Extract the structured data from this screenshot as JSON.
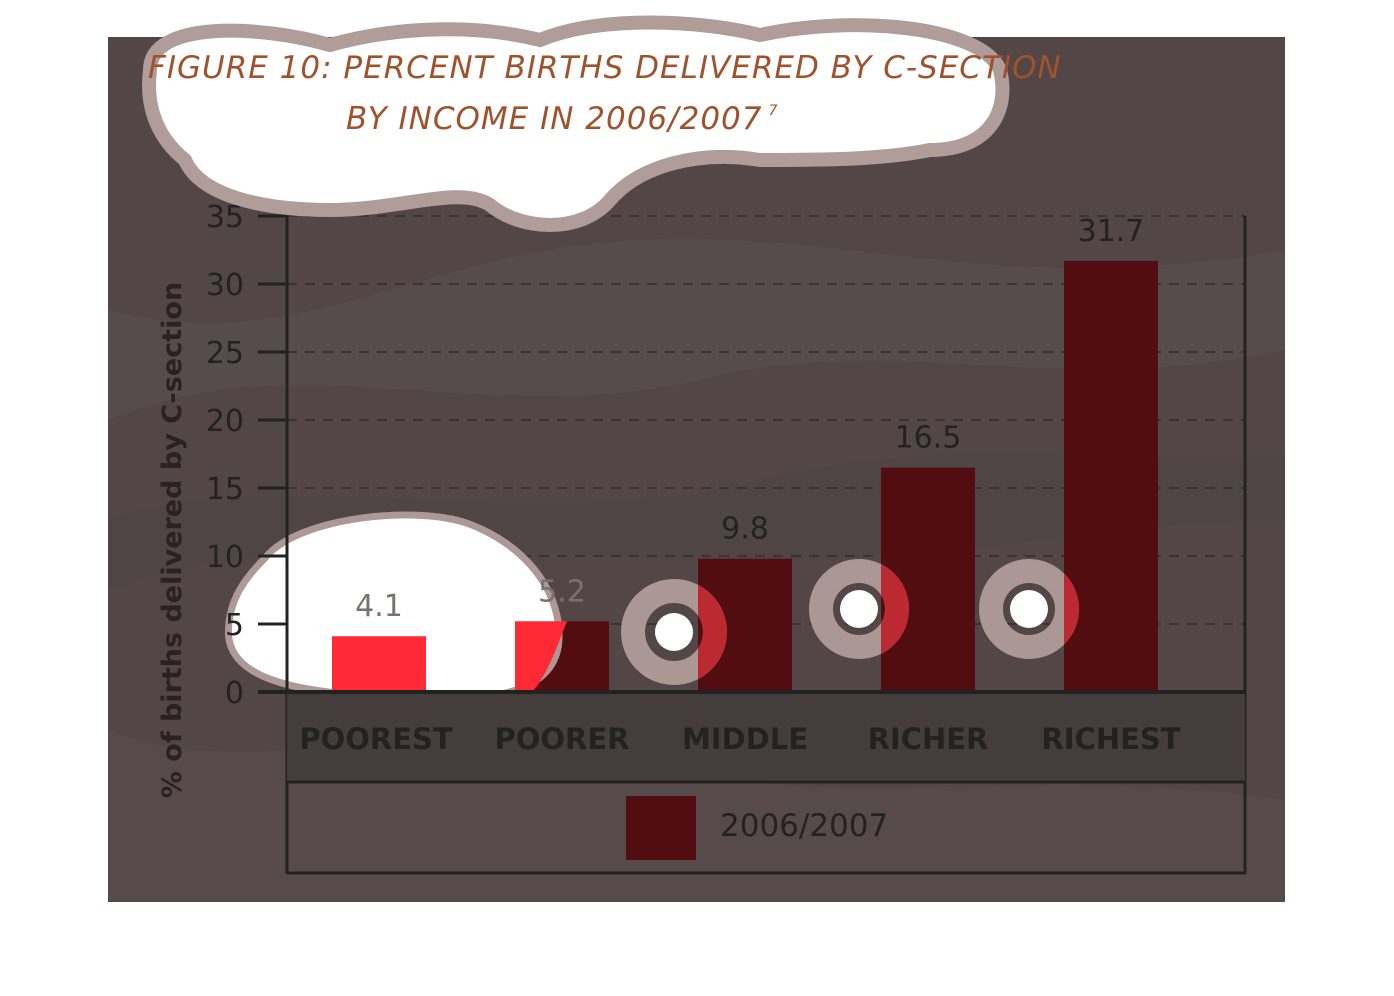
{
  "chart_data": {
    "type": "bar",
    "title_line_1": "FIGURE 10: PERCENT BIRTHS DELIVERED BY C-SECTION",
    "title_line_2": "BY INCOME IN 2006/2007",
    "title_note": "7",
    "ylabel": "% of births delivered by C-section",
    "xlabel": "",
    "ylim": [
      0,
      35
    ],
    "yticks": [
      0,
      5,
      10,
      15,
      20,
      25,
      30,
      35
    ],
    "grid": true,
    "categories": [
      "POOREST",
      "POORER",
      "MIDDLE",
      "RICHER",
      "RICHEST"
    ],
    "series": [
      {
        "name": "2006/2007",
        "values": [
          4.1,
          5.2,
          9.8,
          16.5,
          31.7
        ]
      }
    ],
    "data_labels": [
      "4.1",
      "5.2",
      "9.8",
      "16.5",
      "31.7"
    ],
    "legend_position": "bottom"
  },
  "colors": {
    "background": "#524746",
    "bar": "#520d10",
    "bar_highlight": "#ff2a36",
    "axis": "#222222",
    "title": "#a0522d",
    "blob": "#ffffff",
    "blob_halo": "#b09c99"
  }
}
